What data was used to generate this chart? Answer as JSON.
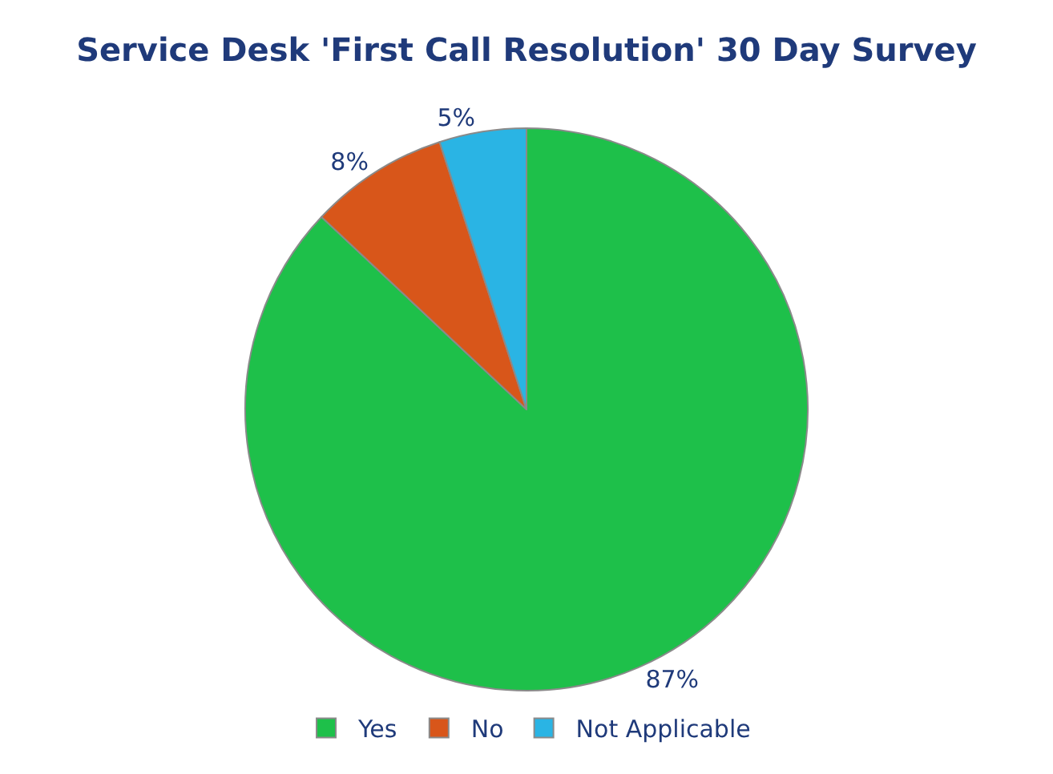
{
  "chart_data": {
    "type": "pie",
    "title": "Service Desk 'First Call Resolution' 30 Day Survey",
    "categories": [
      "Yes",
      "No",
      "Not Applicable"
    ],
    "values": [
      87,
      8,
      5
    ],
    "colors": [
      "#1ec04a",
      "#d8561a",
      "#2ab4e4"
    ],
    "value_labels": [
      "87%",
      "8%",
      "5%"
    ],
    "legend": "bottom"
  }
}
